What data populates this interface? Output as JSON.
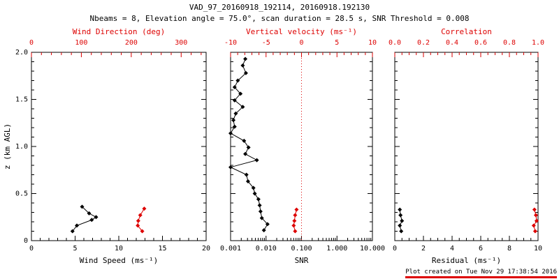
{
  "header": {
    "title": "VAD_97_20160918_192114, 20160918.192130",
    "subtitle": "Nbeams = 8, Elevation angle = 75.0°, scan duration = 28.5 s, SNR Threshold = 0.008"
  },
  "footer": {
    "created_note": "Plot created on Tue Nov 29 17:38:54 2016"
  },
  "colors": {
    "axis_black": "#000000",
    "accent_red": "#dd0000",
    "background": "#ffffff"
  },
  "chart_data": {
    "type": "scatter",
    "title": "VAD_97_20160918_192114, 20160918.192130",
    "subtitle": "Nbeams = 8, Elevation angle = 75.0°, scan duration = 28.5 s, SNR Threshold = 0.008",
    "ylabel": "z (km AGL)",
    "ylim": [
      0,
      2.0
    ],
    "ytick_values": [
      0,
      0.5,
      1.0,
      1.5,
      2.0
    ],
    "ytick_labels": [
      "0",
      "0.5",
      "1.0",
      "1.5",
      "2.0"
    ],
    "y_minor_step": 0.1,
    "grid": false,
    "legend": "none",
    "panels": [
      {
        "id": "wind",
        "bottom_axis": {
          "label": "Wind Speed (ms⁻¹)",
          "lim": [
            0,
            20
          ],
          "tick_values": [
            0,
            5,
            10,
            15,
            20
          ],
          "tick_labels": [
            "0",
            "5",
            "10",
            "15",
            "20"
          ],
          "minor_step": 1,
          "color": "#000000"
        },
        "top_axis": {
          "label": "Wind Direction (deg)",
          "lim": [
            0,
            350
          ],
          "tick_values": [
            0,
            100,
            200,
            300
          ],
          "tick_labels": [
            "0",
            "100",
            "200",
            "300"
          ],
          "minor_step": 20,
          "color": "#dd0000"
        },
        "series": [
          {
            "name": "wind_speed",
            "axis": "bottom",
            "color": "#000000",
            "points": [
              [
                4.7,
                0.1
              ],
              [
                5.2,
                0.16
              ],
              [
                6.9,
                0.22
              ],
              [
                7.4,
                0.25
              ],
              [
                6.6,
                0.29
              ],
              [
                5.8,
                0.36
              ]
            ]
          },
          {
            "name": "wind_direction",
            "axis": "top",
            "color": "#dd0000",
            "points": [
              [
                222,
                0.1
              ],
              [
                213,
                0.16
              ],
              [
                214,
                0.21
              ],
              [
                218,
                0.27
              ],
              [
                226,
                0.34
              ]
            ]
          }
        ]
      },
      {
        "id": "snr",
        "bottom_axis": {
          "label": "SNR",
          "lim": [
            0.001,
            10
          ],
          "scale": "log",
          "tick_values": [
            0.001,
            0.01,
            0.1,
            1,
            10
          ],
          "tick_labels": [
            "0.001",
            "0.010",
            "0.100",
            "1.000",
            "10.000"
          ],
          "color": "#000000"
        },
        "top_axis": {
          "label": "Vertical velocity (ms⁻¹)",
          "lim": [
            -10,
            10
          ],
          "tick_values": [
            -10,
            -5,
            0,
            5,
            10
          ],
          "tick_labels": [
            "-10",
            "-5",
            "0",
            "5",
            "10"
          ],
          "minor_step": 1,
          "color": "#dd0000"
        },
        "refline": {
          "axis": "top",
          "value": 0,
          "color": "#dd0000",
          "style": "dotted"
        },
        "series": [
          {
            "name": "snr_profile",
            "axis": "bottom",
            "color": "#000000",
            "points": [
              [
                0.0087,
                0.11
              ],
              [
                0.011,
                0.175
              ],
              [
                0.0076,
                0.24
              ],
              [
                0.007,
                0.31
              ],
              [
                0.0066,
                0.375
              ],
              [
                0.0061,
                0.44
              ],
              [
                0.0048,
                0.5
              ],
              [
                0.0044,
                0.56
              ],
              [
                0.0031,
                0.63
              ],
              [
                0.0028,
                0.7
              ],
              [
                0.001,
                0.78
              ],
              [
                0.0055,
                0.855
              ],
              [
                0.0026,
                0.92
              ],
              [
                0.0032,
                0.99
              ],
              [
                0.0024,
                1.06
              ],
              [
                0.001,
                1.14
              ],
              [
                0.0013,
                1.21
              ],
              [
                0.0012,
                1.28
              ],
              [
                0.0014,
                1.35
              ],
              [
                0.0022,
                1.42
              ],
              [
                0.0013,
                1.49
              ],
              [
                0.0019,
                1.56
              ],
              [
                0.0013,
                1.63
              ],
              [
                0.0016,
                1.7
              ],
              [
                0.0027,
                1.78
              ],
              [
                0.0022,
                1.86
              ],
              [
                0.0026,
                1.93
              ]
            ]
          },
          {
            "name": "vertical_velocity",
            "axis": "top",
            "color": "#dd0000",
            "points": [
              [
                -0.9,
                0.1
              ],
              [
                -1.1,
                0.16
              ],
              [
                -1.0,
                0.21
              ],
              [
                -0.9,
                0.27
              ],
              [
                -0.7,
                0.33
              ]
            ]
          }
        ]
      },
      {
        "id": "residual",
        "bottom_axis": {
          "label": "Residual (ms⁻¹)",
          "lim": [
            0,
            10
          ],
          "tick_values": [
            0,
            2,
            4,
            6,
            8,
            10
          ],
          "tick_labels": [
            "0",
            "2",
            "4",
            "6",
            "8",
            "10"
          ],
          "minor_step": 0.5,
          "color": "#000000"
        },
        "top_axis": {
          "label": "Correlation",
          "lim": [
            0,
            1
          ],
          "tick_values": [
            0,
            0.2,
            0.4,
            0.6,
            0.8,
            1.0
          ],
          "tick_labels": [
            "0.0",
            "0.2",
            "0.4",
            "0.6",
            "0.8",
            "1.0"
          ],
          "minor_step": 0.05,
          "color": "#dd0000"
        },
        "series": [
          {
            "name": "residual",
            "axis": "bottom",
            "color": "#000000",
            "points": [
              [
                0.45,
                0.1
              ],
              [
                0.35,
                0.16
              ],
              [
                0.5,
                0.21
              ],
              [
                0.4,
                0.27
              ],
              [
                0.35,
                0.33
              ]
            ]
          },
          {
            "name": "correlation",
            "axis": "top",
            "color": "#dd0000",
            "points": [
              [
                0.98,
                0.1
              ],
              [
                0.97,
                0.16
              ],
              [
                0.99,
                0.21
              ],
              [
                0.985,
                0.27
              ],
              [
                0.975,
                0.33
              ]
            ]
          }
        ]
      }
    ]
  }
}
